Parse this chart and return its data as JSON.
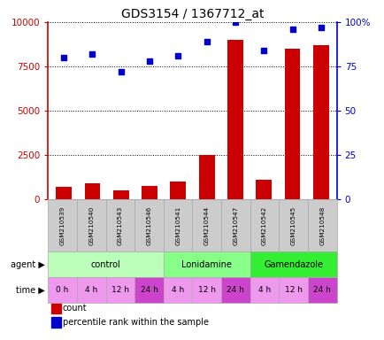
{
  "title": "GDS3154 / 1367712_at",
  "samples": [
    "GSM210539",
    "GSM210540",
    "GSM210543",
    "GSM210546",
    "GSM210541",
    "GSM210544",
    "GSM210547",
    "GSM210542",
    "GSM210545",
    "GSM210548"
  ],
  "counts": [
    700,
    900,
    500,
    750,
    1000,
    2500,
    9000,
    1100,
    8500,
    8700
  ],
  "percentiles": [
    80,
    82,
    72,
    78,
    81,
    89,
    100,
    84,
    96,
    97
  ],
  "ylim_left": [
    0,
    10000
  ],
  "ylim_right": [
    0,
    100
  ],
  "yticks_left": [
    0,
    2500,
    5000,
    7500,
    10000
  ],
  "yticks_right": [
    0,
    25,
    50,
    75,
    100
  ],
  "ytick_labels_left": [
    "0",
    "2500",
    "5000",
    "7500",
    "10000"
  ],
  "ytick_labels_right": [
    "0",
    "25",
    "50",
    "75",
    "100%"
  ],
  "bar_color": "#cc0000",
  "dot_color": "#0000cc",
  "agent_groups": [
    {
      "label": "control",
      "start": 0,
      "end": 4,
      "color": "#bbffbb"
    },
    {
      "label": "Lonidamine",
      "start": 4,
      "end": 7,
      "color": "#88ff88"
    },
    {
      "label": "Gamendazole",
      "start": 7,
      "end": 10,
      "color": "#33ee33"
    }
  ],
  "time_labels": [
    "0 h",
    "4 h",
    "12 h",
    "24 h",
    "4 h",
    "12 h",
    "24 h",
    "4 h",
    "12 h",
    "24 h"
  ],
  "time_colors": [
    "#ee99ee",
    "#ee99ee",
    "#ee99ee",
    "#cc44cc",
    "#ee99ee",
    "#ee99ee",
    "#cc44cc",
    "#ee99ee",
    "#ee99ee",
    "#cc44cc"
  ],
  "legend_count_color": "#cc0000",
  "legend_pct_color": "#0000cc",
  "background_color": "#ffffff",
  "plot_bg_color": "#ffffff",
  "grid_color": "#000000",
  "label_color_left": "#cc0000",
  "label_color_right": "#0000cc",
  "gsm_bg_color": "#cccccc",
  "gsm_edge_color": "#aaaaaa"
}
